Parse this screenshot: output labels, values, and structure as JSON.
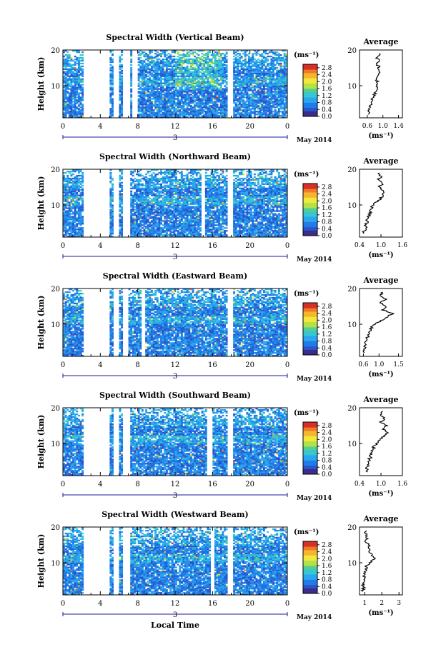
{
  "xlabel": "Local Time",
  "date_label": "May 2014",
  "day_label": "3",
  "cbar_unit": "(ms⁻¹)",
  "ylabel": "Height (km)",
  "avg_title": "Average",
  "avg_xlabel": "(ms⁻¹)",
  "colormap": [
    "#3a2a8a",
    "#2b55c9",
    "#1f7ce8",
    "#2aa6ee",
    "#37c6d2",
    "#55d08a",
    "#b4e04a",
    "#f2e83a",
    "#f6b52e",
    "#f07a25",
    "#d73027"
  ],
  "chart_data": [
    {
      "type": "heatmap",
      "title": "Spectral Width (Vertical Beam)",
      "x_ticks": [
        "0",
        "4",
        "8",
        "12",
        "16",
        "20",
        "0"
      ],
      "y_ticks": [
        "10",
        "20"
      ],
      "xlim": [
        0,
        24
      ],
      "ylim": [
        1,
        20
      ],
      "colorbar_ticks": [
        "0.0",
        "0.4",
        "0.8",
        "1.2",
        "1.6",
        "2.0",
        "2.4",
        "2.8"
      ],
      "colorbar_range": [
        0,
        3.0
      ],
      "data_gaps_hours": [
        [
          2.3,
          4.9
        ],
        [
          5.5,
          6.0
        ],
        [
          6.5,
          7.2
        ],
        [
          7.5,
          7.9
        ],
        [
          17.7,
          18.2
        ]
      ],
      "average_profile": {
        "x_ticks": [
          "0.6",
          "1.0",
          "1.4"
        ],
        "y_ticks": [
          "10",
          "20"
        ],
        "xlim": [
          0.4,
          1.5
        ],
        "ylim": [
          1,
          20
        ],
        "heights_km": [
          2,
          3,
          4,
          5,
          6,
          7,
          8,
          9,
          10,
          11,
          12,
          13,
          14,
          15,
          16,
          17,
          18,
          19
        ],
        "values_ms": [
          0.62,
          0.64,
          0.66,
          0.7,
          0.72,
          0.76,
          0.8,
          0.84,
          0.82,
          0.86,
          0.84,
          0.9,
          0.88,
          0.9,
          0.86,
          0.88,
          0.84,
          0.9
        ]
      }
    },
    {
      "type": "heatmap",
      "title": "Spectral Width (Northward Beam)",
      "x_ticks": [
        "0",
        "4",
        "8",
        "12",
        "16",
        "20",
        "0"
      ],
      "y_ticks": [
        "10",
        "20"
      ],
      "xlim": [
        0,
        24
      ],
      "ylim": [
        1,
        20
      ],
      "colorbar_ticks": [
        "0.0",
        "0.4",
        "0.8",
        "1.2",
        "1.6",
        "2.0",
        "2.4",
        "2.8"
      ],
      "colorbar_range": [
        0,
        3.0
      ],
      "data_gaps_hours": [
        [
          2.3,
          4.9
        ],
        [
          5.5,
          6.0
        ],
        [
          6.5,
          7.2
        ],
        [
          14.8,
          15.2
        ],
        [
          17.7,
          18.2
        ]
      ],
      "average_profile": {
        "x_ticks": [
          "0.4",
          "1.0",
          "1.6"
        ],
        "y_ticks": [
          "10",
          "20"
        ],
        "xlim": [
          0.4,
          1.6
        ],
        "ylim": [
          1,
          20
        ],
        "heights_km": [
          2,
          3,
          4,
          5,
          6,
          7,
          8,
          9,
          10,
          11,
          12,
          13,
          14,
          15,
          16,
          17,
          18,
          19
        ],
        "values_ms": [
          0.5,
          0.55,
          0.58,
          0.6,
          0.62,
          0.66,
          0.7,
          0.72,
          0.78,
          0.9,
          1.0,
          1.08,
          1.02,
          0.95,
          1.05,
          0.9,
          1.0,
          0.95
        ]
      }
    },
    {
      "type": "heatmap",
      "title": "Spectral Width (Eastward Beam)",
      "x_ticks": [
        "0",
        "4",
        "8",
        "12",
        "16",
        "20",
        "0"
      ],
      "y_ticks": [
        "10",
        "20"
      ],
      "xlim": [
        0,
        24
      ],
      "ylim": [
        1,
        20
      ],
      "colorbar_ticks": [
        "0.0",
        "0.4",
        "0.8",
        "1.2",
        "1.6",
        "2.0",
        "2.4",
        "2.8"
      ],
      "colorbar_range": [
        0,
        3.0
      ],
      "data_gaps_hours": [
        [
          2.3,
          4.9
        ],
        [
          5.5,
          6.0
        ],
        [
          6.5,
          7.0
        ],
        [
          8.4,
          8.7
        ],
        [
          17.7,
          18.2
        ]
      ],
      "average_profile": {
        "x_ticks": [
          "0.6",
          "1.0",
          "1.5"
        ],
        "y_ticks": [
          "10",
          "20"
        ],
        "xlim": [
          0.5,
          1.6
        ],
        "ylim": [
          1,
          20
        ],
        "heights_km": [
          2,
          3,
          4,
          5,
          6,
          7,
          8,
          9,
          10,
          11,
          12,
          13,
          14,
          15,
          16,
          17,
          18,
          19
        ],
        "values_ms": [
          0.62,
          0.6,
          0.64,
          0.66,
          0.7,
          0.72,
          0.75,
          0.8,
          0.9,
          1.05,
          1.2,
          1.35,
          1.1,
          1.2,
          1.05,
          1.15,
          1.0,
          1.1
        ]
      }
    },
    {
      "type": "heatmap",
      "title": "Spectral Width (Southward Beam)",
      "x_ticks": [
        "0",
        "4",
        "8",
        "12",
        "16",
        "20",
        "0"
      ],
      "y_ticks": [
        "10",
        "20"
      ],
      "xlim": [
        0,
        24
      ],
      "ylim": [
        1,
        20
      ],
      "colorbar_ticks": [
        "0.0",
        "0.4",
        "0.8",
        "1.2",
        "1.6",
        "2.0",
        "2.4",
        "2.8"
      ],
      "colorbar_range": [
        0,
        3.0
      ],
      "data_gaps_hours": [
        [
          2.3,
          4.9
        ],
        [
          5.5,
          6.0
        ],
        [
          6.5,
          7.2
        ],
        [
          15.5,
          15.9
        ],
        [
          17.7,
          18.2
        ]
      ],
      "average_profile": {
        "x_ticks": [
          "0.4",
          "1.0",
          "1.6"
        ],
        "y_ticks": [
          "10",
          "20"
        ],
        "xlim": [
          0.4,
          1.6
        ],
        "ylim": [
          1,
          20
        ],
        "heights_km": [
          2,
          3,
          4,
          5,
          6,
          7,
          8,
          9,
          10,
          11,
          12,
          13,
          14,
          15,
          16,
          17,
          18,
          19
        ],
        "values_ms": [
          0.62,
          0.6,
          0.66,
          0.64,
          0.7,
          0.72,
          0.76,
          0.8,
          0.86,
          0.95,
          1.1,
          1.2,
          1.05,
          1.15,
          1.0,
          1.1,
          0.95,
          1.05
        ]
      }
    },
    {
      "type": "heatmap",
      "title": "Spectral Width (Westward Beam)",
      "x_ticks": [
        "0",
        "4",
        "8",
        "12",
        "16",
        "20",
        "0"
      ],
      "y_ticks": [
        "10",
        "20"
      ],
      "xlim": [
        0,
        24
      ],
      "ylim": [
        1,
        20
      ],
      "colorbar_ticks": [
        "0.0",
        "0.4",
        "0.8",
        "1.2",
        "1.6",
        "2.0",
        "2.4",
        "2.8"
      ],
      "colorbar_range": [
        0,
        3.0
      ],
      "data_gaps_hours": [
        [
          2.3,
          4.9
        ],
        [
          5.5,
          6.0
        ],
        [
          6.5,
          7.2
        ],
        [
          15.8,
          16.2
        ],
        [
          17.7,
          18.2
        ]
      ],
      "average_profile": {
        "x_ticks": [
          "1",
          "2",
          "3"
        ],
        "y_ticks": [
          "10",
          "20"
        ],
        "xlim": [
          0.7,
          3.2
        ],
        "ylim": [
          1,
          20
        ],
        "heights_km": [
          2,
          3,
          4,
          5,
          6,
          7,
          8,
          9,
          10,
          11,
          12,
          13,
          14,
          15,
          16,
          17,
          18,
          19
        ],
        "values_ms": [
          0.9,
          0.95,
          0.9,
          0.95,
          1.0,
          1.0,
          1.05,
          1.1,
          1.3,
          1.6,
          1.45,
          1.3,
          1.2,
          1.25,
          1.1,
          1.15,
          1.05,
          1.1
        ]
      }
    }
  ]
}
